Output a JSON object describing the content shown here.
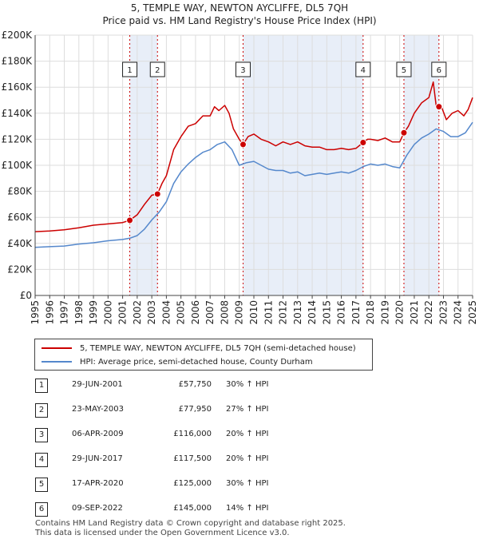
{
  "title_line1": "5, TEMPLE WAY, NEWTON AYCLIFFE, DL5 7QH",
  "title_line2": "Price paid vs. HM Land Registry's House Price Index (HPI)",
  "colors": {
    "property": "#cc0000",
    "hpi": "#5588cc",
    "shade": "#e8eef8",
    "grid": "#dddddd",
    "marker_line": "#cc0000"
  },
  "legend": {
    "property": "5, TEMPLE WAY, NEWTON AYCLIFFE, DL5 7QH (semi-detached house)",
    "hpi": "HPI: Average price, semi-detached house, County Durham"
  },
  "sales": [
    {
      "num": "1",
      "date": "29-JUN-2001",
      "price": "£57,750",
      "hpi": "30% ↑ HPI"
    },
    {
      "num": "2",
      "date": "23-MAY-2003",
      "price": "£77,950",
      "hpi": "27% ↑ HPI"
    },
    {
      "num": "3",
      "date": "06-APR-2009",
      "price": "£116,000",
      "hpi": "20% ↑ HPI"
    },
    {
      "num": "4",
      "date": "29-JUN-2017",
      "price": "£117,500",
      "hpi": "20% ↑ HPI"
    },
    {
      "num": "5",
      "date": "17-APR-2020",
      "price": "£125,000",
      "hpi": "30% ↑ HPI"
    },
    {
      "num": "6",
      "date": "09-SEP-2022",
      "price": "£145,000",
      "hpi": "14% ↑ HPI"
    }
  ],
  "footer": {
    "line1": "Contains HM Land Registry data © Crown copyright and database right 2025.",
    "line2": "This data is licensed under the Open Government Licence v3.0."
  },
  "chart_data": {
    "type": "line",
    "title": "5, TEMPLE WAY, NEWTON AYCLIFFE, DL5 7QH",
    "subtitle": "Price paid vs. HM Land Registry's House Price Index (HPI)",
    "xlabel": "",
    "ylabel": "",
    "xlim": [
      1995,
      2025
    ],
    "ylim": [
      0,
      200000
    ],
    "x_ticks": [
      "1995",
      "1996",
      "1997",
      "1998",
      "1999",
      "2000",
      "2001",
      "2002",
      "2003",
      "2004",
      "2005",
      "2006",
      "2007",
      "2008",
      "2009",
      "2010",
      "2011",
      "2012",
      "2013",
      "2014",
      "2015",
      "2016",
      "2017",
      "2018",
      "2019",
      "2020",
      "2021",
      "2022",
      "2023",
      "2024",
      "2025"
    ],
    "y_ticks": [
      {
        "value": 0,
        "label": "£0"
      },
      {
        "value": 20000,
        "label": "£20K"
      },
      {
        "value": 40000,
        "label": "£40K"
      },
      {
        "value": 60000,
        "label": "£60K"
      },
      {
        "value": 80000,
        "label": "£80K"
      },
      {
        "value": 100000,
        "label": "£100K"
      },
      {
        "value": 120000,
        "label": "£120K"
      },
      {
        "value": 140000,
        "label": "£140K"
      },
      {
        "value": 160000,
        "label": "£160K"
      },
      {
        "value": 180000,
        "label": "£180K"
      },
      {
        "value": 200000,
        "label": "£200K"
      }
    ],
    "grid": true,
    "legend_position": "below chart",
    "shaded_periods": [
      [
        2001.49,
        2003.39
      ],
      [
        2009.26,
        2017.49
      ],
      [
        2020.29,
        2022.69
      ]
    ],
    "series": [
      {
        "name": "5, TEMPLE WAY, NEWTON AYCLIFFE, DL5 7QH (semi-detached house)",
        "x": [
          1995,
          1996,
          1997,
          1998,
          1999,
          2000,
          2001,
          2001.49,
          2002,
          2002.5,
          2003,
          2003.39,
          2003.7,
          2004,
          2004.5,
          2005,
          2005.5,
          2006,
          2006.5,
          2007,
          2007.3,
          2007.6,
          2008,
          2008.3,
          2008.6,
          2009,
          2009.26,
          2009.6,
          2010,
          2010.5,
          2011,
          2011.5,
          2012,
          2012.5,
          2013,
          2013.5,
          2014,
          2014.5,
          2015,
          2015.5,
          2016,
          2016.5,
          2017,
          2017.49,
          2017.8,
          2018,
          2018.5,
          2019,
          2019.5,
          2020,
          2020.29,
          2020.6,
          2021,
          2021.5,
          2022,
          2022.3,
          2022.5,
          2022.69,
          2022.9,
          2023.2,
          2023.6,
          2024,
          2024.4,
          2024.7,
          2025
        ],
        "values": [
          49000,
          49500,
          50500,
          52000,
          54000,
          55000,
          56000,
          57750,
          62000,
          70000,
          77000,
          77950,
          86000,
          92000,
          112000,
          122000,
          130000,
          132000,
          138000,
          138000,
          145000,
          142000,
          146000,
          140000,
          128000,
          120000,
          116000,
          122000,
          124000,
          120000,
          118000,
          115000,
          118000,
          116000,
          118000,
          115000,
          114000,
          114000,
          112000,
          112000,
          113000,
          112000,
          113000,
          117500,
          120000,
          120000,
          119000,
          121000,
          118000,
          118000,
          125000,
          130000,
          140000,
          148000,
          152000,
          164000,
          146000,
          145000,
          144000,
          135000,
          140000,
          142000,
          138000,
          143000,
          152000
        ]
      },
      {
        "name": "HPI: Average price, semi-detached house, County Durham",
        "x": [
          1995,
          1996,
          1997,
          1998,
          1999,
          2000,
          2001,
          2001.5,
          2002,
          2002.5,
          2003,
          2003.5,
          2004,
          2004.5,
          2005,
          2005.5,
          2006,
          2006.5,
          2007,
          2007.5,
          2008,
          2008.5,
          2009,
          2009.5,
          2010,
          2010.5,
          2011,
          2011.5,
          2012,
          2012.5,
          2013,
          2013.5,
          2014,
          2014.5,
          2015,
          2015.5,
          2016,
          2016.5,
          2017,
          2017.5,
          2018,
          2018.5,
          2019,
          2019.5,
          2020,
          2020.5,
          2021,
          2021.5,
          2022,
          2022.5,
          2023,
          2023.5,
          2024,
          2024.5,
          2025
        ],
        "values": [
          37000,
          37500,
          38000,
          39500,
          40500,
          42000,
          43000,
          44000,
          46000,
          51000,
          58000,
          64000,
          72000,
          86000,
          95000,
          101000,
          106000,
          110000,
          112000,
          116000,
          118000,
          112000,
          100000,
          102000,
          103000,
          100000,
          97000,
          96000,
          96000,
          94000,
          95000,
          92000,
          93000,
          94000,
          93000,
          94000,
          95000,
          94000,
          96000,
          99000,
          101000,
          100000,
          101000,
          99000,
          98000,
          108000,
          116000,
          121000,
          124000,
          128000,
          126000,
          122000,
          122000,
          125000,
          133000
        ]
      }
    ],
    "sale_points": [
      {
        "label": "1",
        "x": 2001.49,
        "y": 57750
      },
      {
        "label": "2",
        "x": 2003.39,
        "y": 77950
      },
      {
        "label": "3",
        "x": 2009.26,
        "y": 116000
      },
      {
        "label": "4",
        "x": 2017.49,
        "y": 117500
      },
      {
        "label": "5",
        "x": 2020.29,
        "y": 125000
      },
      {
        "label": "6",
        "x": 2022.69,
        "y": 145000
      }
    ]
  }
}
